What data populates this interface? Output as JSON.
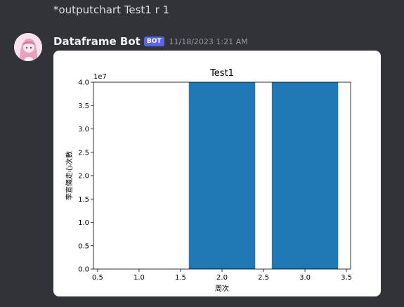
{
  "command_message": {
    "text": "*outputchart Test1 r 1"
  },
  "message": {
    "username": "Dataframe Bot",
    "badge": "BOT",
    "timestamp": "11/18/2023 1:21 AM",
    "avatar_icon": "anime-girl-avatar-icon"
  },
  "colors": {
    "background": "#313338",
    "badge": "#5865f2",
    "bar": "#1f77b4"
  },
  "chart_data": {
    "type": "bar",
    "title": "Test1",
    "xlabel": "周次",
    "ylabel": "李宣儀走心次數",
    "y_scale_label": "1e7",
    "x": [
      2.0,
      3.0
    ],
    "bar_width": 0.8,
    "values": [
      40000000,
      40000000
    ],
    "xlim": [
      0.45,
      3.55
    ],
    "ylim": [
      0,
      40000000
    ],
    "xticks": [
      "0.5",
      "1.0",
      "1.5",
      "2.0",
      "2.5",
      "3.0",
      "3.5"
    ],
    "yticks": [
      "0.0",
      "0.5",
      "1.0",
      "1.5",
      "2.0",
      "2.5",
      "3.0",
      "3.5",
      "4.0"
    ],
    "grid": false
  }
}
